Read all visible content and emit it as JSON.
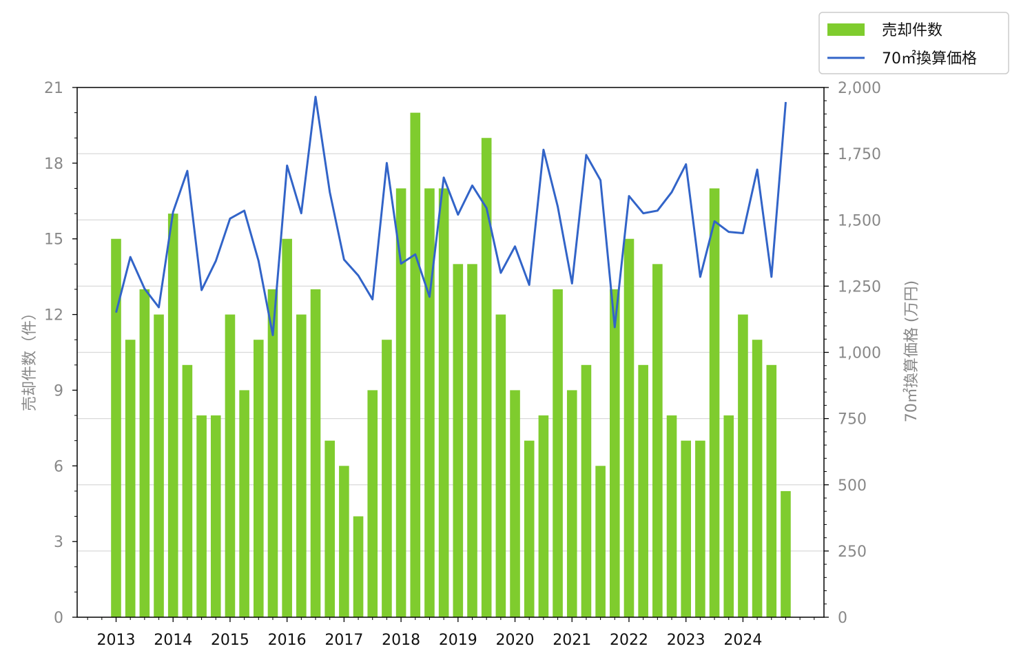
{
  "chart_data": {
    "type": "bar",
    "x": [
      "2013-Q1",
      "2013-Q2",
      "2013-Q3",
      "2013-Q4",
      "2014-Q1",
      "2014-Q2",
      "2014-Q3",
      "2014-Q4",
      "2015-Q1",
      "2015-Q2",
      "2015-Q3",
      "2015-Q4",
      "2016-Q1",
      "2016-Q2",
      "2016-Q3",
      "2016-Q4",
      "2017-Q1",
      "2017-Q2",
      "2017-Q3",
      "2017-Q4",
      "2018-Q1",
      "2018-Q2",
      "2018-Q3",
      "2018-Q4",
      "2019-Q1",
      "2019-Q2",
      "2019-Q3",
      "2019-Q4",
      "2020-Q1",
      "2020-Q2",
      "2020-Q3",
      "2020-Q4",
      "2021-Q1",
      "2021-Q2",
      "2021-Q3",
      "2021-Q4",
      "2022-Q1",
      "2022-Q2",
      "2022-Q3",
      "2022-Q4",
      "2023-Q1",
      "2023-Q2",
      "2023-Q3",
      "2023-Q4",
      "2024-Q1",
      "2024-Q2",
      "2024-Q3",
      "2024-Q4"
    ],
    "x_tick_labels": [
      "2013",
      "2014",
      "2015",
      "2016",
      "2017",
      "2018",
      "2019",
      "2020",
      "2021",
      "2022",
      "2023",
      "2024"
    ],
    "series": [
      {
        "name": "売却件数",
        "type": "bar",
        "axis": "left",
        "color": "#7fcc2e",
        "values": [
          15,
          11,
          13,
          12,
          16,
          10,
          8,
          8,
          12,
          9,
          11,
          13,
          15,
          12,
          13,
          7,
          6,
          4,
          9,
          11,
          17,
          20,
          17,
          17,
          14,
          14,
          19,
          12,
          9,
          7,
          8,
          13,
          9,
          10,
          6,
          13,
          15,
          10,
          14,
          8,
          7,
          7,
          17,
          8,
          12,
          11,
          10,
          5
        ]
      },
      {
        "name": "70㎡換算価格",
        "type": "line",
        "axis": "right",
        "color": "#3264c8",
        "values": [
          1150,
          1360,
          1240,
          1170,
          1530,
          1685,
          1235,
          1345,
          1505,
          1535,
          1345,
          1065,
          1705,
          1525,
          1965,
          1605,
          1350,
          1290,
          1200,
          1715,
          1335,
          1370,
          1210,
          1660,
          1520,
          1630,
          1545,
          1300,
          1400,
          1255,
          1765,
          1550,
          1260,
          1745,
          1650,
          1095,
          1590,
          1525,
          1535,
          1605,
          1710,
          1285,
          1495,
          1455,
          1450,
          1690,
          1285,
          1945
        ]
      }
    ],
    "left_axis": {
      "label": "売却件数（件）",
      "ylim": [
        0,
        21
      ],
      "ticks": [
        "0",
        "3",
        "6",
        "9",
        "12",
        "15",
        "18",
        "21"
      ]
    },
    "right_axis": {
      "label": "70㎡換算価格 (万円)",
      "ylim": [
        0,
        2000
      ],
      "ticks": [
        "0",
        "250",
        "500",
        "750",
        "1,000",
        "1,250",
        "1,500",
        "1,750",
        "2,000"
      ]
    },
    "grid": "horizontal, right axis",
    "legend_placement": "top-right outside"
  }
}
